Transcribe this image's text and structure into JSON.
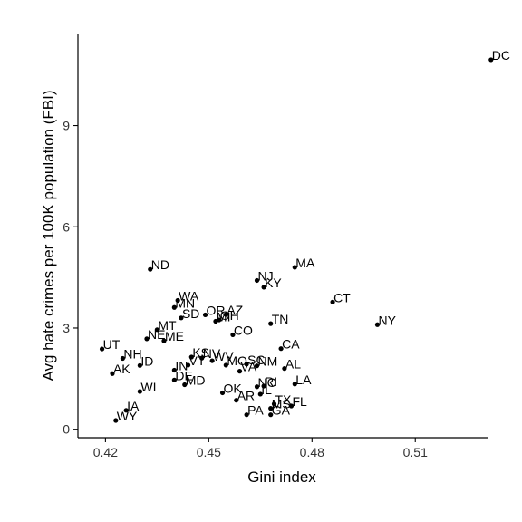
{
  "chart_data": {
    "type": "scatter",
    "title": "",
    "xlabel": "Gini index",
    "ylabel": "Avg hate crimes per 100K population (FBI)",
    "xlim": [
      0.412,
      0.531
    ],
    "ylim": [
      -0.25,
      11.7
    ],
    "xticks": [
      0.42,
      0.45,
      0.48,
      0.51
    ],
    "xtick_labels": [
      "0.42",
      "0.45",
      "0.48",
      "0.51"
    ],
    "yticks": [
      0,
      3,
      6,
      9
    ],
    "ytick_labels": [
      "0",
      "3",
      "6",
      "9"
    ],
    "grid": false,
    "legend": "none",
    "point_color": "#000000",
    "points": [
      {
        "label": "DC",
        "x": 0.532,
        "y": 10.95
      },
      {
        "label": "ND",
        "x": 0.433,
        "y": 4.74
      },
      {
        "label": "MA",
        "x": 0.475,
        "y": 4.8
      },
      {
        "label": "NJ",
        "x": 0.464,
        "y": 4.41
      },
      {
        "label": "KY",
        "x": 0.466,
        "y": 4.21
      },
      {
        "label": "CT",
        "x": 0.486,
        "y": 3.77
      },
      {
        "label": "WA",
        "x": 0.441,
        "y": 3.82
      },
      {
        "label": "MN",
        "x": 0.44,
        "y": 3.61
      },
      {
        "label": "OR",
        "x": 0.449,
        "y": 3.39
      },
      {
        "label": "AZ",
        "x": 0.455,
        "y": 3.4
      },
      {
        "label": "SD",
        "x": 0.442,
        "y": 3.3
      },
      {
        "label": "MI",
        "x": 0.452,
        "y": 3.2
      },
      {
        "label": "OH",
        "x": 0.453,
        "y": 3.24
      },
      {
        "label": "TN",
        "x": 0.468,
        "y": 3.13
      },
      {
        "label": "NY",
        "x": 0.499,
        "y": 3.1
      },
      {
        "label": "MT",
        "x": 0.435,
        "y": 2.95
      },
      {
        "label": "CO",
        "x": 0.457,
        "y": 2.8
      },
      {
        "label": "NE",
        "x": 0.432,
        "y": 2.68
      },
      {
        "label": "ME",
        "x": 0.437,
        "y": 2.62
      },
      {
        "label": "UT",
        "x": 0.419,
        "y": 2.38
      },
      {
        "label": "CA",
        "x": 0.471,
        "y": 2.39
      },
      {
        "label": "NH",
        "x": 0.425,
        "y": 2.1
      },
      {
        "label": "KS",
        "x": 0.445,
        "y": 2.14
      },
      {
        "label": "NV",
        "x": 0.448,
        "y": 2.11
      },
      {
        "label": "WV",
        "x": 0.451,
        "y": 2.03
      },
      {
        "label": "SC",
        "x": 0.461,
        "y": 1.93
      },
      {
        "label": "NM",
        "x": 0.464,
        "y": 1.88
      },
      {
        "label": "MO",
        "x": 0.455,
        "y": 1.9
      },
      {
        "label": "ID",
        "x": 0.43,
        "y": 1.89
      },
      {
        "label": "VT",
        "x": 0.444,
        "y": 1.9
      },
      {
        "label": "AL",
        "x": 0.472,
        "y": 1.8
      },
      {
        "label": "VA",
        "x": 0.459,
        "y": 1.72
      },
      {
        "label": "IN",
        "x": 0.44,
        "y": 1.75
      },
      {
        "label": "AK",
        "x": 0.422,
        "y": 1.65
      },
      {
        "label": "DE",
        "x": 0.44,
        "y": 1.46
      },
      {
        "label": "MD",
        "x": 0.443,
        "y": 1.32
      },
      {
        "label": "LA",
        "x": 0.475,
        "y": 1.34
      },
      {
        "label": "RI",
        "x": 0.466,
        "y": 1.28
      },
      {
        "label": "NC",
        "x": 0.464,
        "y": 1.26
      },
      {
        "label": "WI",
        "x": 0.43,
        "y": 1.12
      },
      {
        "label": "OK",
        "x": 0.454,
        "y": 1.08
      },
      {
        "label": "IL",
        "x": 0.465,
        "y": 1.04
      },
      {
        "label": "AR",
        "x": 0.458,
        "y": 0.86
      },
      {
        "label": "TX",
        "x": 0.469,
        "y": 0.75
      },
      {
        "label": "FL",
        "x": 0.474,
        "y": 0.69
      },
      {
        "label": "MS",
        "x": 0.468,
        "y": 0.62
      },
      {
        "label": "IA",
        "x": 0.426,
        "y": 0.56
      },
      {
        "label": "GA",
        "x": 0.468,
        "y": 0.43
      },
      {
        "label": "PA",
        "x": 0.461,
        "y": 0.43
      },
      {
        "label": "WY",
        "x": 0.423,
        "y": 0.26
      }
    ]
  }
}
